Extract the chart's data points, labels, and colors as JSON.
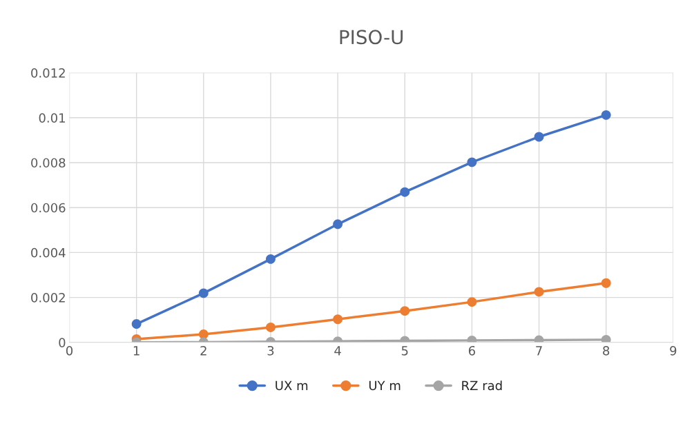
{
  "chart_data": {
    "type": "line",
    "title": "PISO-U",
    "x": [
      1,
      2,
      3,
      4,
      5,
      6,
      7,
      8
    ],
    "series": [
      {
        "name": "UX m",
        "color": "#4472c4",
        "values": [
          0.00082,
          0.00219,
          0.00371,
          0.00526,
          0.00669,
          0.00802,
          0.00915,
          0.01012
        ]
      },
      {
        "name": "UY m",
        "color": "#ed7d31",
        "values": [
          0.00015,
          0.00036,
          0.00067,
          0.00103,
          0.0014,
          0.0018,
          0.00225,
          0.00264
        ]
      },
      {
        "name": "RZ rad",
        "color": "#a5a5a5",
        "values": [
          0.0,
          1e-05,
          3e-05,
          5e-05,
          7e-05,
          9e-05,
          0.0001,
          0.00012
        ]
      }
    ],
    "xlim": [
      0,
      9
    ],
    "xticks": [
      0,
      1,
      2,
      3,
      4,
      5,
      6,
      7,
      8,
      9
    ],
    "ylim": [
      0,
      0.012
    ],
    "yticks": [
      0,
      0.002,
      0.004,
      0.006,
      0.008,
      0.01,
      0.012
    ],
    "grid": true,
    "legend": "bottom",
    "marker": "circle",
    "line_style": "solid"
  }
}
